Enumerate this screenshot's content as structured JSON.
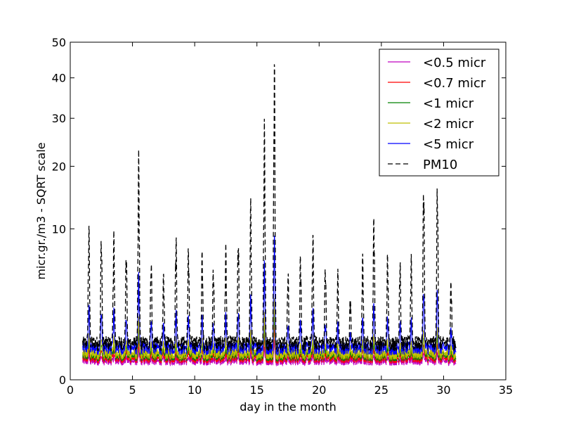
{
  "chart_data": {
    "type": "line",
    "title": "",
    "xlabel": "day in the month",
    "ylabel": "micr.gr./m3 - SQRT scale",
    "xlim": [
      0,
      35
    ],
    "ylim": [
      0,
      50
    ],
    "y_scale": "sqrt",
    "x_ticks": [
      0,
      5,
      10,
      15,
      20,
      25,
      30,
      35
    ],
    "y_ticks": [
      0,
      10,
      20,
      30,
      40,
      50
    ],
    "grid": false,
    "legend_position": "upper right",
    "series": [
      {
        "name": "<0.5 micr",
        "color": "#bf00bf",
        "dash": "solid",
        "peak_scale": 0.012,
        "base": 0.15
      },
      {
        "name": "<0.7 micr",
        "color": "#ff0000",
        "dash": "solid",
        "peak_scale": 0.025,
        "base": 0.2
      },
      {
        "name": "<1 micr",
        "color": "#008000",
        "dash": "solid",
        "peak_scale": 0.04,
        "base": 0.25
      },
      {
        "name": "<2 micr",
        "color": "#bfbf00",
        "dash": "solid",
        "peak_scale": 0.06,
        "base": 0.3
      },
      {
        "name": "<5 micr",
        "color": "#0000ff",
        "dash": "solid",
        "peak_scale": 0.2,
        "base": 0.45
      },
      {
        "name": "PM10",
        "color": "#000000",
        "dash": "dashed",
        "peak_scale": 1.0,
        "base": 0.6
      }
    ],
    "daily_peaks_pm10": [
      {
        "day": 1.5,
        "value": 10.5
      },
      {
        "day": 2.5,
        "value": 9.5
      },
      {
        "day": 3.5,
        "value": 9.2
      },
      {
        "day": 4.5,
        "value": 7.5
      },
      {
        "day": 5.5,
        "value": 22.5
      },
      {
        "day": 6.5,
        "value": 6.2
      },
      {
        "day": 7.5,
        "value": 4.5
      },
      {
        "day": 8.5,
        "value": 9.2
      },
      {
        "day": 9.5,
        "value": 8.0
      },
      {
        "day": 10.6,
        "value": 7.0
      },
      {
        "day": 11.5,
        "value": 5.5
      },
      {
        "day": 12.5,
        "value": 7.5
      },
      {
        "day": 13.5,
        "value": 9.0
      },
      {
        "day": 14.5,
        "value": 14.0
      },
      {
        "day": 15.6,
        "value": 29.5
      },
      {
        "day": 16.4,
        "value": 47.0
      },
      {
        "day": 17.5,
        "value": 5.0
      },
      {
        "day": 18.5,
        "value": 7.0
      },
      {
        "day": 19.5,
        "value": 9.2
      },
      {
        "day": 20.5,
        "value": 5.8
      },
      {
        "day": 21.5,
        "value": 4.7
      },
      {
        "day": 22.5,
        "value": 2.5
      },
      {
        "day": 23.5,
        "value": 6.5
      },
      {
        "day": 24.4,
        "value": 12.2
      },
      {
        "day": 25.5,
        "value": 6.8
      },
      {
        "day": 26.5,
        "value": 6.2
      },
      {
        "day": 27.4,
        "value": 6.5
      },
      {
        "day": 28.4,
        "value": 18.5
      },
      {
        "day": 29.5,
        "value": 18.0
      },
      {
        "day": 30.6,
        "value": 4.0
      }
    ]
  }
}
